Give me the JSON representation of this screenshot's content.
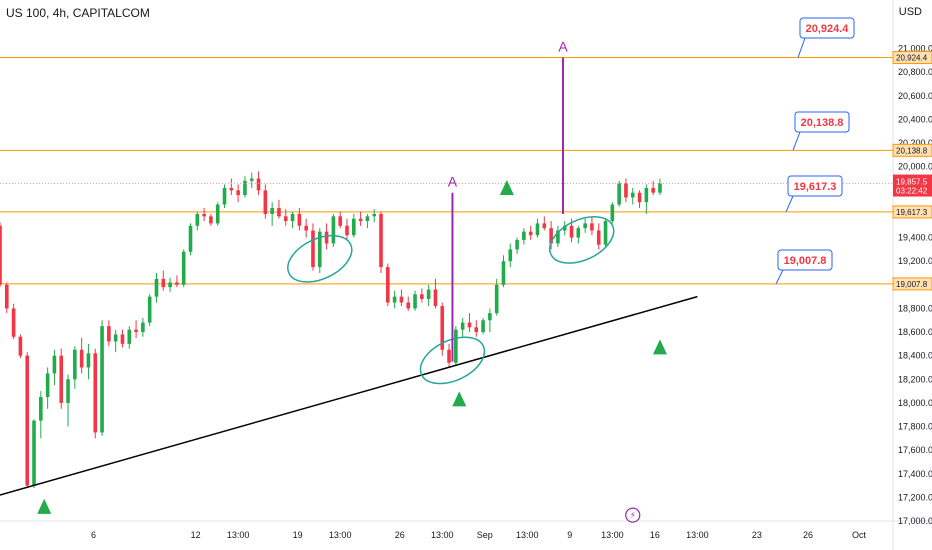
{
  "header": {
    "symbol_title": "US 100, 4h, CAPITALCOM",
    "currency": "USD"
  },
  "colors": {
    "up": "#22ab4a",
    "down": "#f23645",
    "level_line": "#ff9800",
    "trend_line": "#000000",
    "callout_border": "#2962ff",
    "callout_text": "#f23645",
    "ellipse": "#26a69a",
    "marker": "#9c27b0",
    "arrow": "#22ab4a",
    "price_tag_bg": "#f23645"
  },
  "chart_data": {
    "type": "candlestick",
    "ylim": [
      17000,
      21200
    ],
    "y_ticks": [
      17000,
      17200,
      17400,
      17600,
      17800,
      18000,
      18200,
      18400,
      18600,
      18800,
      19000,
      19200,
      19400,
      19600,
      19800,
      20000,
      20200,
      20400,
      20600,
      20800,
      21000
    ],
    "y_tick_labels": [
      "17,000.0",
      "17,200.0",
      "17,400.0",
      "17,600.0",
      "17,800.0",
      "18,000.0",
      "18,200.0",
      "18,400.0",
      "18,600.0",
      "18,800.0",
      "19,000.0",
      "19,200.0",
      "19,400.0",
      "19,600.0",
      "19,800.0",
      "20,000.0",
      "20,200.0",
      "20,400.0",
      "20,600.0",
      "20,800.0",
      "21,000.0"
    ],
    "x_tick_labels": [
      {
        "label": "6",
        "day": 5.5
      },
      {
        "label": "12",
        "day": 11.5
      },
      {
        "label": "13:00",
        "day": 14
      },
      {
        "label": "19",
        "day": 17.5
      },
      {
        "label": "13:00",
        "day": 20
      },
      {
        "label": "26",
        "day": 23.5
      },
      {
        "label": "13:00",
        "day": 26
      },
      {
        "label": "Sep",
        "day": 28.5
      },
      {
        "label": "13:00",
        "day": 31
      },
      {
        "label": "9",
        "day": 33.5
      },
      {
        "label": "13:00",
        "day": 36
      },
      {
        "label": "16",
        "day": 38.5
      },
      {
        "label": "13:00",
        "day": 41
      },
      {
        "label": "23",
        "day": 44.5
      },
      {
        "label": "26",
        "day": 47.5
      },
      {
        "label": "Oct",
        "day": 50.5
      }
    ],
    "candles": [
      [
        0.0,
        19500,
        19530,
        18980,
        19000
      ],
      [
        0.4,
        19000,
        19020,
        18760,
        18800
      ],
      [
        0.8,
        18800,
        18840,
        18540,
        18560
      ],
      [
        1.2,
        18560,
        18580,
        18380,
        18400
      ],
      [
        1.6,
        18400,
        18430,
        17280,
        17300
      ],
      [
        2.0,
        17300,
        17860,
        17280,
        17850
      ],
      [
        2.4,
        17850,
        18100,
        17700,
        18050
      ],
      [
        2.8,
        18050,
        18300,
        17950,
        18250
      ],
      [
        3.2,
        18250,
        18450,
        18150,
        18400
      ],
      [
        3.6,
        18400,
        18460,
        17950,
        18000
      ],
      [
        4.0,
        18000,
        18240,
        17800,
        18200
      ],
      [
        4.4,
        18200,
        18480,
        18120,
        18450
      ],
      [
        4.8,
        18450,
        18550,
        18250,
        18300
      ],
      [
        5.2,
        18300,
        18500,
        18200,
        18420
      ],
      [
        5.6,
        18420,
        18460,
        17700,
        17750
      ],
      [
        6.0,
        17750,
        18700,
        17720,
        18650
      ],
      [
        6.4,
        18650,
        18700,
        18480,
        18520
      ],
      [
        6.8,
        18520,
        18620,
        18430,
        18580
      ],
      [
        7.2,
        18580,
        18620,
        18470,
        18500
      ],
      [
        7.6,
        18500,
        18650,
        18460,
        18620
      ],
      [
        8.0,
        18620,
        18700,
        18550,
        18600
      ],
      [
        8.4,
        18600,
        18720,
        18560,
        18680
      ],
      [
        8.8,
        18680,
        18920,
        18650,
        18900
      ],
      [
        9.2,
        18900,
        19100,
        18850,
        19050
      ],
      [
        9.6,
        19050,
        19120,
        18950,
        18980
      ],
      [
        10.0,
        18980,
        19060,
        18940,
        19020
      ],
      [
        10.4,
        19020,
        19080,
        18980,
        19000
      ],
      [
        10.8,
        19000,
        19300,
        18980,
        19280
      ],
      [
        11.2,
        19280,
        19520,
        19250,
        19500
      ],
      [
        11.6,
        19500,
        19620,
        19460,
        19600
      ],
      [
        12.0,
        19600,
        19650,
        19540,
        19580
      ],
      [
        12.4,
        19580,
        19600,
        19500,
        19520
      ],
      [
        12.8,
        19520,
        19700,
        19500,
        19680
      ],
      [
        13.2,
        19680,
        19850,
        19650,
        19820
      ],
      [
        13.6,
        19820,
        19900,
        19760,
        19800
      ],
      [
        14.0,
        19800,
        19850,
        19700,
        19760
      ],
      [
        14.4,
        19760,
        19920,
        19740,
        19880
      ],
      [
        14.8,
        19880,
        19950,
        19820,
        19900
      ],
      [
        15.2,
        19900,
        19960,
        19760,
        19800
      ],
      [
        15.6,
        19800,
        19850,
        19560,
        19600
      ],
      [
        16.0,
        19600,
        19700,
        19500,
        19650
      ],
      [
        16.4,
        19650,
        19720,
        19560,
        19580
      ],
      [
        16.8,
        19580,
        19640,
        19500,
        19540
      ],
      [
        17.2,
        19540,
        19620,
        19480,
        19600
      ],
      [
        17.6,
        19600,
        19650,
        19460,
        19500
      ],
      [
        18.0,
        19500,
        19560,
        19400,
        19460
      ],
      [
        18.4,
        19460,
        19520,
        19120,
        19150
      ],
      [
        18.8,
        19150,
        19480,
        19100,
        19450
      ],
      [
        19.2,
        19450,
        19520,
        19300,
        19350
      ],
      [
        19.6,
        19350,
        19600,
        19320,
        19580
      ],
      [
        20.0,
        19580,
        19620,
        19480,
        19500
      ],
      [
        20.4,
        19500,
        19560,
        19380,
        19420
      ],
      [
        20.8,
        19420,
        19600,
        19400,
        19560
      ],
      [
        21.2,
        19560,
        19620,
        19500,
        19540
      ],
      [
        21.6,
        19540,
        19600,
        19480,
        19580
      ],
      [
        22.0,
        19580,
        19640,
        19530,
        19600
      ],
      [
        22.4,
        19600,
        19620,
        19100,
        19150
      ],
      [
        22.8,
        19150,
        19180,
        18820,
        18850
      ],
      [
        23.2,
        18850,
        18950,
        18800,
        18900
      ],
      [
        23.6,
        18900,
        18960,
        18820,
        18850
      ],
      [
        24.0,
        18850,
        18900,
        18780,
        18800
      ],
      [
        24.4,
        18800,
        18950,
        18780,
        18920
      ],
      [
        24.8,
        18920,
        18970,
        18850,
        18880
      ],
      [
        25.2,
        18880,
        19000,
        18820,
        18960
      ],
      [
        25.6,
        18960,
        19050,
        18800,
        18820
      ],
      [
        26.0,
        18820,
        18850,
        18400,
        18450
      ],
      [
        26.4,
        18450,
        18500,
        18300,
        18340
      ],
      [
        26.8,
        18340,
        18650,
        18320,
        18620
      ],
      [
        27.2,
        18620,
        18720,
        18560,
        18680
      ],
      [
        27.6,
        18680,
        18760,
        18600,
        18640
      ],
      [
        28.0,
        18640,
        18700,
        18560,
        18600
      ],
      [
        28.4,
        18600,
        18720,
        18580,
        18700
      ],
      [
        28.8,
        18700,
        18800,
        18600,
        18760
      ],
      [
        29.2,
        18760,
        19050,
        18740,
        19000
      ],
      [
        29.6,
        19000,
        19250,
        18980,
        19200
      ],
      [
        30.0,
        19200,
        19350,
        19150,
        19300
      ],
      [
        30.4,
        19300,
        19400,
        19260,
        19380
      ],
      [
        30.8,
        19380,
        19480,
        19340,
        19450
      ],
      [
        31.2,
        19450,
        19500,
        19380,
        19420
      ],
      [
        31.6,
        19420,
        19560,
        19400,
        19520
      ],
      [
        32.0,
        19520,
        19580,
        19460,
        19480
      ],
      [
        32.4,
        19480,
        19540,
        19300,
        19350
      ],
      [
        32.8,
        19350,
        19500,
        19320,
        19460
      ],
      [
        33.2,
        19460,
        19540,
        19420,
        19500
      ],
      [
        33.6,
        19500,
        19560,
        19360,
        19400
      ],
      [
        34.0,
        19400,
        19500,
        19350,
        19480
      ],
      [
        34.4,
        19480,
        19560,
        19440,
        19520
      ],
      [
        34.8,
        19520,
        19580,
        19420,
        19460
      ],
      [
        35.2,
        19460,
        19520,
        19300,
        19340
      ],
      [
        35.6,
        19340,
        19560,
        19320,
        19540
      ],
      [
        36.0,
        19540,
        19700,
        19520,
        19680
      ],
      [
        36.4,
        19680,
        19880,
        19660,
        19860
      ],
      [
        36.8,
        19860,
        19900,
        19700,
        19740
      ],
      [
        37.2,
        19740,
        19820,
        19680,
        19780
      ],
      [
        37.6,
        19780,
        19800,
        19650,
        19700
      ],
      [
        38.0,
        19700,
        19850,
        19600,
        19820
      ],
      [
        38.4,
        19820,
        19880,
        19760,
        19780
      ],
      [
        38.8,
        19780,
        19900,
        19760,
        19860
      ]
    ],
    "horizontal_levels": [
      {
        "value": 20924.4,
        "label": "20,924.4"
      },
      {
        "value": 20138.8,
        "label": "20,138.8"
      },
      {
        "value": 19617.3,
        "label": "19,617.3"
      },
      {
        "value": 19007.8,
        "label": "19,007.8"
      }
    ],
    "current_price": {
      "value": 19857.5,
      "label": "19,857.5",
      "countdown": "03:22:42"
    },
    "annotations": {
      "trendline": [
        [
          0.0,
          17220
        ],
        [
          41.0,
          18900
        ]
      ],
      "ellipses": [
        {
          "day": 18.8,
          "value": 19220
        },
        {
          "day": 26.6,
          "value": 18360
        },
        {
          "day": 34.2,
          "value": 19380
        }
      ],
      "vertical_markers": [
        {
          "day": 26.6,
          "from": 18350,
          "to": 19780,
          "text": "A"
        },
        {
          "day": 33.1,
          "from": 19600,
          "to": 20924.4,
          "text": "A"
        }
      ],
      "up_arrows": [
        {
          "day": 2.6,
          "value": 17120
        },
        {
          "day": 27.0,
          "value": 18030
        },
        {
          "day": 29.8,
          "value": 19820
        },
        {
          "day": 38.8,
          "value": 18470
        }
      ],
      "event_icon": {
        "day": 37.2,
        "value": 17050,
        "text": "⚡"
      }
    }
  }
}
